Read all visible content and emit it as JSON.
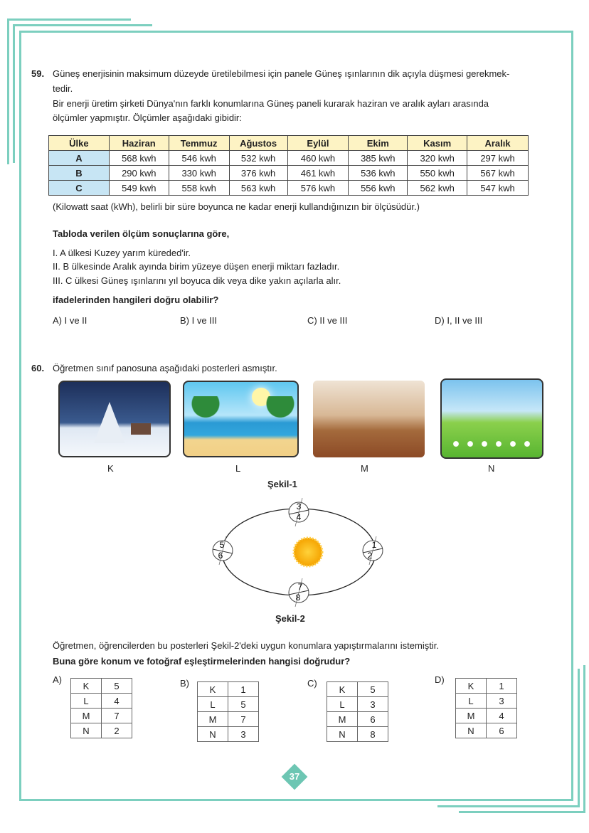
{
  "q59": {
    "number": "59.",
    "lines": [
      "Güneş enerjisinin maksimum düzeyde üretilebilmesi için panele Güneş ışınlarının dik açıyla düşmesi gerekmek-",
      "tedir.",
      "Bir enerji üretim şirketi Dünya'nın farklı konumlarına Güneş paneli kurarak haziran ve aralık ayları arasında",
      "ölçümler yapmıştır. Ölçümler aşağıdaki gibidir:"
    ],
    "table": {
      "headers": [
        "Ülke",
        "Haziran",
        "Temmuz",
        "Ağustos",
        "Eylül",
        "Ekim",
        "Kasım",
        "Aralık"
      ],
      "rows": [
        [
          "A",
          "568 kwh",
          "546 kwh",
          "532 kwh",
          "460 kwh",
          "385 kwh",
          "320 kwh",
          "297 kwh"
        ],
        [
          "B",
          "290 kwh",
          "330 kwh",
          "376 kwh",
          "461 kwh",
          "536 kwh",
          "550 kwh",
          "567 kwh"
        ],
        [
          "C",
          "549 kwh",
          "558 kwh",
          "563 kwh",
          "576 kwh",
          "556 kwh",
          "562 kwh",
          "547 kwh"
        ]
      ]
    },
    "note": "(Kilowatt saat (kWh), belirli bir süre boyunca ne kadar enerji kullandığınızın bir ölçüsüdür.)",
    "lead": "Tabloda verilen ölçüm sonuçlarına göre,",
    "statements": [
      "I.  A ülkesi Kuzey yarım küreded'ir.",
      "II.  B ülkesinde Aralık ayında birim yüzeye düşen enerji miktarı fazladır.",
      "III. C ülkesi Güneş ışınlarını yıl boyuca dik veya dike yakın açılarla alır."
    ],
    "question": "ifadelerinden hangileri doğru olabilir?",
    "options": [
      "A) I ve II",
      "B) I ve III",
      "C)  II ve III",
      "D) I, II ve III"
    ]
  },
  "q60": {
    "number": "60.",
    "intro": "Öğretmen sınıf panosuna aşağıdaki posterleri asmıştır.",
    "posters": [
      "K",
      "L",
      "M",
      "N"
    ],
    "figure1": "Şekil-1",
    "orbit_labels": [
      [
        "3",
        "4"
      ],
      [
        "1",
        "2"
      ],
      [
        "7",
        "8"
      ],
      [
        "5",
        "6"
      ]
    ],
    "figure2": "Şekil-2",
    "text": "Öğretmen, öğrencilerden bu posterleri Şekil-2'deki  uygun konumlara yapıştırmalarını istemiştir.",
    "question": "Buna göre konum ve fotoğraf eşleştirmelerinden hangisi doğrudur?",
    "options": [
      {
        "label": "A)",
        "rows": [
          [
            "K",
            "5"
          ],
          [
            "L",
            "4"
          ],
          [
            "M",
            "7"
          ],
          [
            "N",
            "2"
          ]
        ]
      },
      {
        "label": "B)",
        "rows": [
          [
            "K",
            "1"
          ],
          [
            "L",
            "5"
          ],
          [
            "M",
            "7"
          ],
          [
            "N",
            "3"
          ]
        ]
      },
      {
        "label": "C)",
        "rows": [
          [
            "K",
            "5"
          ],
          [
            "L",
            "3"
          ],
          [
            "M",
            "6"
          ],
          [
            "N",
            "8"
          ]
        ]
      },
      {
        "label": "D)",
        "rows": [
          [
            "K",
            "1"
          ],
          [
            "L",
            "3"
          ],
          [
            "M",
            "4"
          ],
          [
            "N",
            "6"
          ]
        ]
      }
    ]
  },
  "page_number": "37",
  "colors": {
    "frame": "#7ccfbf",
    "header": "#fdf3c4",
    "row_header": "#c7e5f4"
  }
}
